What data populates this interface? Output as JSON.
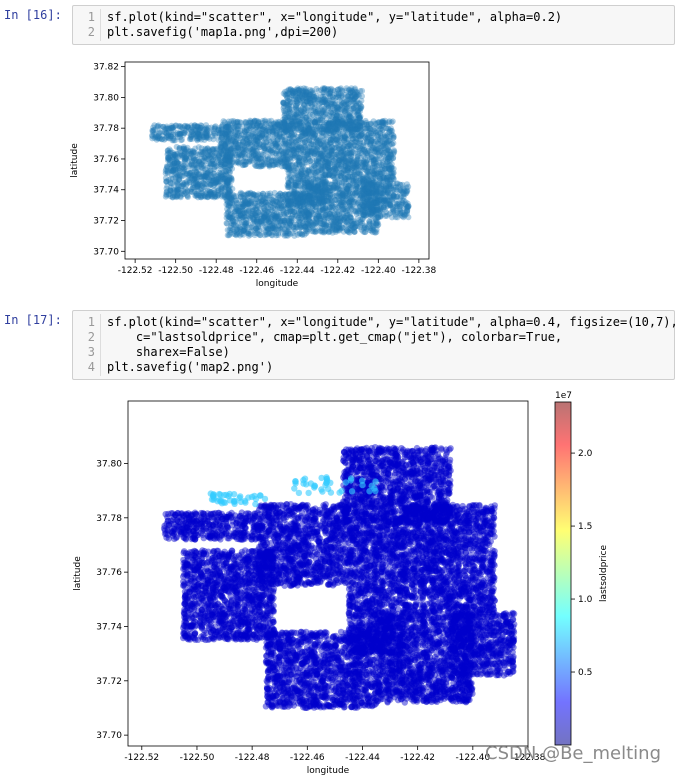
{
  "cells": [
    {
      "prompt": "In  [16]:",
      "lines": [
        {
          "n": "1",
          "code": "sf.plot(kind=\"scatter\", x=\"longitude\", y=\"latitude\", alpha=0.2)"
        },
        {
          "n": "2",
          "code": "plt.savefig('map1a.png',dpi=200)"
        }
      ]
    },
    {
      "prompt": "In  [17]:",
      "lines": [
        {
          "n": "1",
          "code": "sf.plot(kind=\"scatter\", x=\"longitude\", y=\"latitude\", alpha=0.4, figsize=(10,7),"
        },
        {
          "n": "2",
          "code": "    c=\"lastsoldprice\", cmap=plt.get_cmap(\"jet\"), colorbar=True,"
        },
        {
          "n": "3",
          "code": "    sharex=False)"
        },
        {
          "n": "4",
          "code": "plt.savefig('map2.png')"
        }
      ]
    }
  ],
  "chart_data": [
    {
      "type": "scatter",
      "xlabel": "longitude",
      "ylabel": "latitude",
      "xlim": [
        -122.525,
        -122.375
      ],
      "ylim": [
        37.695,
        37.823
      ],
      "xticks": [
        "-122.52",
        "-122.50",
        "-122.48",
        "-122.46",
        "-122.44",
        "-122.42",
        "-122.40",
        "-122.38"
      ],
      "yticks": [
        "37.70",
        "37.72",
        "37.74",
        "37.76",
        "37.78",
        "37.80",
        "37.82"
      ],
      "color": "#1f77b4",
      "alpha": 0.2,
      "regions": [
        {
          "x": [
            -122.512,
            -122.478
          ],
          "y": [
            37.772,
            37.782
          ]
        },
        {
          "x": [
            -122.505,
            -122.472
          ],
          "y": [
            37.735,
            37.768
          ]
        },
        {
          "x": [
            -122.478,
            -122.445
          ],
          "y": [
            37.755,
            37.785
          ]
        },
        {
          "x": [
            -122.447,
            -122.408
          ],
          "y": [
            37.778,
            37.806
          ]
        },
        {
          "x": [
            -122.445,
            -122.425
          ],
          "y": [
            37.73,
            37.78
          ]
        },
        {
          "x": [
            -122.425,
            -122.392
          ],
          "y": [
            37.745,
            37.785
          ]
        },
        {
          "x": [
            -122.475,
            -122.435
          ],
          "y": [
            37.71,
            37.738
          ]
        },
        {
          "x": [
            -122.435,
            -122.4
          ],
          "y": [
            37.712,
            37.745
          ]
        },
        {
          "x": [
            -122.408,
            -122.385
          ],
          "y": [
            37.722,
            37.745
          ]
        }
      ]
    },
    {
      "type": "scatter",
      "xlabel": "longitude",
      "ylabel": "latitude",
      "xlim": [
        -122.525,
        -122.38
      ],
      "ylim": [
        37.696,
        37.823
      ],
      "xticks": [
        "-122.52",
        "-122.50",
        "-122.48",
        "-122.46",
        "-122.44",
        "-122.42",
        "-122.40",
        "-122.38"
      ],
      "yticks": [
        "37.70",
        "37.72",
        "37.74",
        "37.76",
        "37.78",
        "37.80"
      ],
      "colorbar": {
        "label": "lastsoldprice",
        "scale": "1e7",
        "cmap": "jet",
        "ticks": [
          "0.5",
          "1.0",
          "1.5",
          "2.0"
        ],
        "range": [
          0,
          2.35
        ]
      },
      "point_color": "#0000cc",
      "highlight_color": "#33ccff",
      "alpha": 0.4,
      "regions": [
        {
          "x": [
            -122.512,
            -122.478
          ],
          "y": [
            37.772,
            37.782
          ]
        },
        {
          "x": [
            -122.505,
            -122.472
          ],
          "y": [
            37.735,
            37.768
          ]
        },
        {
          "x": [
            -122.478,
            -122.445
          ],
          "y": [
            37.755,
            37.785
          ]
        },
        {
          "x": [
            -122.447,
            -122.408
          ],
          "y": [
            37.778,
            37.806
          ]
        },
        {
          "x": [
            -122.445,
            -122.425
          ],
          "y": [
            37.73,
            37.78
          ]
        },
        {
          "x": [
            -122.425,
            -122.392
          ],
          "y": [
            37.745,
            37.785
          ]
        },
        {
          "x": [
            -122.475,
            -122.435
          ],
          "y": [
            37.71,
            37.738
          ]
        },
        {
          "x": [
            -122.435,
            -122.4
          ],
          "y": [
            37.712,
            37.745
          ]
        },
        {
          "x": [
            -122.408,
            -122.385
          ],
          "y": [
            37.722,
            37.745
          ]
        }
      ],
      "highlights": [
        {
          "x": [
            -122.495,
            -122.475
          ],
          "y": [
            37.785,
            37.789
          ]
        },
        {
          "x": [
            -122.465,
            -122.435
          ],
          "y": [
            37.789,
            37.795
          ]
        }
      ]
    }
  ],
  "watermark": "CSDN @Be_melting"
}
